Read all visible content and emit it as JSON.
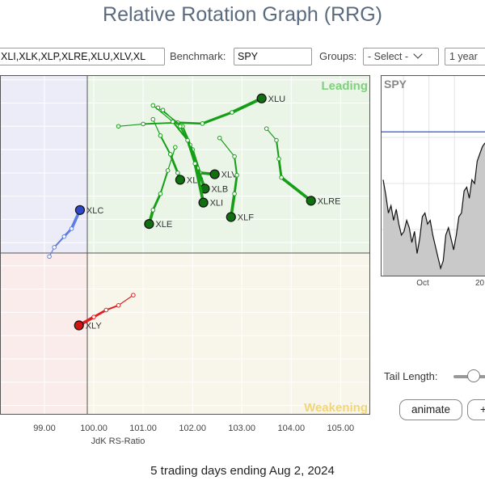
{
  "page": {
    "title": "Relative Rotation Graph (RRG)",
    "footer": "5 trading days ending Aug 2, 2024"
  },
  "toolbar": {
    "symbols_value": "XLI,XLK,XLP,XLRE,XLU,XLV,XL",
    "benchmark_label": "Benchmark:",
    "benchmark_value": "SPY",
    "groups_label": "Groups:",
    "groups_value": "- Select -",
    "period_value": "1 year"
  },
  "controls": {
    "tail_length_label": "Tail Length:",
    "tail_length_level": 0.5,
    "animate_label": "animate",
    "second_button_label": "+"
  },
  "colors": {
    "leading": "#21a31f",
    "lagging": "#3b5fd6",
    "improving": "#3b5fd6",
    "weakening": "#e31b1b",
    "leading_bg": "#eaf5e8",
    "improving_bg": "#ececf8",
    "lagging_bg": "#fbecec",
    "weakening_bg": "#f8f5ea"
  },
  "chart_data": [
    {
      "type": "scatter",
      "title": "",
      "xlabel": "JdK RS-Ratio",
      "ylabel": "",
      "x_center": 100,
      "y_center": 100,
      "xlim": [
        98.1,
        105.6
      ],
      "ylim": [
        96.8,
        104.1
      ],
      "x_ticks": [
        "99.00",
        "100.00",
        "101.00",
        "102.00",
        "103.00",
        "104.00",
        "105.00"
      ],
      "quadrant_labels": {
        "leading": "Leading",
        "weakening": "Weakening"
      },
      "series": [
        {
          "name": "XLU",
          "color": "green",
          "points": [
            [
              100.5,
              103.0
            ],
            [
              101.0,
              103.05
            ],
            [
              101.7,
              103.08
            ],
            [
              102.2,
              103.06
            ],
            [
              102.8,
              103.3
            ],
            [
              103.4,
              103.6
            ]
          ]
        },
        {
          "name": "XLRE",
          "color": "green",
          "points": [
            [
              103.5,
              102.95
            ],
            [
              103.7,
              102.7
            ],
            [
              103.75,
              102.3
            ],
            [
              103.8,
              101.9
            ],
            [
              104.4,
              101.4
            ]
          ]
        },
        {
          "name": "XLV",
          "color": "green",
          "points": [
            [
              101.3,
              103.4
            ],
            [
              101.8,
              103.0
            ],
            [
              102.0,
              102.5
            ],
            [
              102.15,
              102.0
            ],
            [
              102.45,
              101.97
            ]
          ]
        },
        {
          "name": "XLP",
          "color": "green",
          "points": [
            [
              101.2,
              103.15
            ],
            [
              101.35,
              102.8
            ],
            [
              101.55,
              102.4
            ],
            [
              101.7,
              102.0
            ],
            [
              101.75,
              101.85
            ]
          ]
        },
        {
          "name": "XLB",
          "color": "green",
          "points": [
            [
              101.4,
              103.35
            ],
            [
              101.75,
              103.0
            ],
            [
              101.95,
              102.6
            ],
            [
              102.1,
              102.1
            ],
            [
              102.25,
              101.66
            ]
          ]
        },
        {
          "name": "XLI",
          "color": "green",
          "points": [
            [
              101.2,
              103.45
            ],
            [
              101.6,
              103.1
            ],
            [
              101.9,
              102.7
            ],
            [
              102.05,
              102.2
            ],
            [
              102.22,
              101.36
            ]
          ]
        },
        {
          "name": "XLF",
          "color": "green",
          "points": [
            [
              102.55,
              102.75
            ],
            [
              102.85,
              102.35
            ],
            [
              102.9,
              101.95
            ],
            [
              102.85,
              101.55
            ],
            [
              102.78,
              101.05
            ]
          ]
        },
        {
          "name": "XLE",
          "color": "green",
          "points": [
            [
              101.65,
              102.55
            ],
            [
              101.5,
              102.05
            ],
            [
              101.35,
              101.55
            ],
            [
              101.2,
              101.2
            ],
            [
              101.12,
              100.9
            ]
          ]
        },
        {
          "name": "XLC",
          "color": "blue",
          "points": [
            [
              99.1,
              100.2
            ],
            [
              99.2,
              100.4
            ],
            [
              99.4,
              100.63
            ],
            [
              99.55,
              100.8
            ],
            [
              99.72,
              101.2
            ]
          ]
        },
        {
          "name": "XLY",
          "color": "red",
          "points": [
            [
              100.8,
              99.37
            ],
            [
              100.5,
              99.15
            ],
            [
              100.25,
              99.05
            ],
            [
              100.0,
              98.9
            ],
            [
              99.7,
              98.72
            ]
          ]
        }
      ]
    },
    {
      "type": "line",
      "title": "SPY",
      "x_ticks": [
        "Oct",
        "20"
      ],
      "reference_level": 0.78,
      "series": [
        {
          "name": "SPY",
          "values": [
            0.52,
            0.44,
            0.34,
            0.38,
            0.3,
            0.36,
            0.28,
            0.22,
            0.24,
            0.3,
            0.26,
            0.18,
            0.24,
            0.12,
            0.2,
            0.32,
            0.34,
            0.28,
            0.3,
            0.22,
            0.16,
            0.1,
            0.04,
            0.08,
            0.22,
            0.26,
            0.2,
            0.14,
            0.22,
            0.32,
            0.34,
            0.46,
            0.48,
            0.42,
            0.52,
            0.5,
            0.62,
            0.66,
            0.7,
            0.72
          ]
        }
      ]
    }
  ]
}
